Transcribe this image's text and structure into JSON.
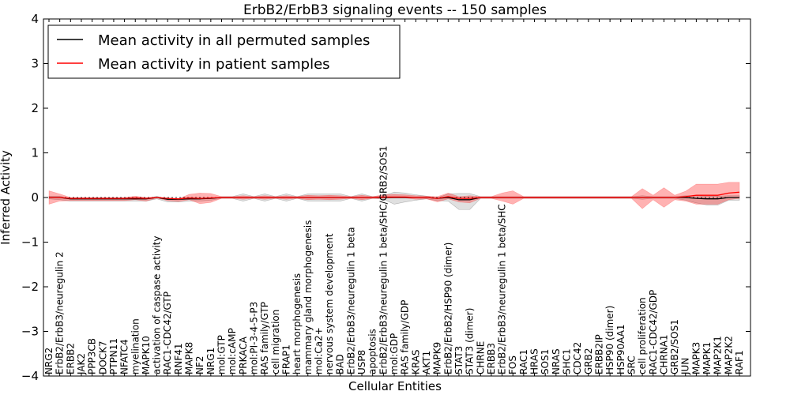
{
  "chart_data": {
    "type": "line",
    "title": "ErbB2/ErbB3 signaling events -- 150 samples",
    "xlabel": "Cellular Entities",
    "ylabel": "Inferred Activity",
    "ylim": [
      -4,
      4
    ],
    "yticks": [
      "4",
      "3",
      "2",
      "1",
      "0",
      "−1",
      "−2",
      "−3",
      "−4"
    ],
    "ytick_values": [
      4,
      3,
      2,
      1,
      0,
      -1,
      -2,
      -3,
      -4
    ],
    "legend": {
      "placement": "top-left",
      "entries": [
        {
          "label": "Mean activity in all permuted samples",
          "color": "#000000"
        },
        {
          "label": "Mean activity in patient samples",
          "color": "#ff0000"
        }
      ]
    },
    "categories": [
      "NRG2",
      "ErbB2/ErbB3/neuregulin 2",
      "ERBB2",
      "JAK2",
      "PPP3CB",
      "DOCK7",
      "PTPN11",
      "NFATC4",
      "myelination",
      "MAPK10",
      "activation of caspase activity",
      "RAC1-CDC42/GTP",
      "RNF41",
      "MAPK8",
      "NF2",
      "NRG1",
      "mol:GTP",
      "mol:cAMP",
      "PRKACA",
      "mol:PI-3-4-5-P3",
      "RAS family/GTP",
      "cell migration",
      "FRAP1",
      "heart morphogenesis",
      "mammary gland morphogenesis",
      "mol:Ca2+",
      "nervous system development",
      "BAD",
      "ErbB2/ErbB3/neuregulin 1 beta",
      "USP8",
      "apoptosis",
      "ErbB2/ErbB3/neuregulin 1 beta/SHC/GRB2/SOS1",
      "mol:GDP",
      "RAS family/GDP",
      "KRAS",
      "AKT1",
      "MAPK9",
      "ErbB2/ErbB2/HSP90 (dimer)",
      "STAT3",
      "STAT3 (dimer)",
      "CHRNE",
      "ERBB3",
      "ErbB2/ErbB3/neuregulin 1 beta/SHC",
      "FOS",
      "RAC1",
      "HRAS",
      "SOS1",
      "NRAS",
      "SHC1",
      "CDC42",
      "GRB2",
      "ERBB2IP",
      "HSP90 (dimer)",
      "HSP90AA1",
      "SRC",
      "cell proliferation",
      "RAC1-CDC42/GDP",
      "CHRNA1",
      "GRB2/SOS1",
      "JUN",
      "MAPK3",
      "MAPK1",
      "MAP2K1",
      "MAP2K2",
      "RAF1"
    ],
    "series": [
      {
        "name": "Mean activity in all permuted samples",
        "color": "#000000",
        "values": [
          0.0,
          0.0,
          -0.03,
          -0.03,
          -0.03,
          -0.03,
          -0.03,
          -0.03,
          -0.03,
          -0.03,
          0.0,
          -0.04,
          -0.04,
          -0.03,
          -0.03,
          -0.02,
          0.0,
          0.0,
          0.0,
          0.0,
          0.0,
          0.0,
          0.0,
          0.0,
          0.0,
          0.0,
          0.0,
          0.0,
          0.0,
          0.0,
          0.0,
          0.0,
          0.0,
          0.0,
          0.0,
          0.0,
          -0.02,
          0.0,
          -0.05,
          -0.05,
          0.0,
          0.0,
          0.0,
          0.0,
          0.0,
          0.0,
          0.0,
          0.0,
          0.0,
          0.0,
          0.0,
          0.0,
          0.0,
          0.0,
          0.0,
          0.0,
          0.0,
          0.0,
          0.0,
          0.0,
          -0.02,
          -0.03,
          -0.03,
          0.0,
          0.0
        ],
        "band": {
          "lower": [
            -0.03,
            -0.05,
            -0.05,
            -0.05,
            -0.05,
            -0.05,
            -0.05,
            -0.05,
            -0.05,
            -0.05,
            -0.03,
            -0.06,
            -0.06,
            -0.05,
            -0.05,
            -0.04,
            -0.02,
            -0.02,
            -0.08,
            -0.02,
            -0.08,
            -0.02,
            -0.08,
            -0.02,
            -0.08,
            -0.08,
            -0.08,
            -0.08,
            -0.02,
            -0.08,
            -0.02,
            -0.04,
            -0.15,
            -0.1,
            -0.06,
            -0.03,
            -0.05,
            -0.08,
            -0.22,
            -0.22,
            -0.02,
            -0.02,
            -0.02,
            -0.02,
            -0.02,
            -0.02,
            -0.02,
            -0.02,
            -0.02,
            -0.02,
            -0.02,
            -0.02,
            -0.02,
            -0.02,
            -0.02,
            -0.04,
            -0.02,
            -0.02,
            -0.02,
            -0.06,
            -0.1,
            -0.14,
            -0.14,
            -0.06,
            -0.06
          ],
          "upper": [
            0.03,
            0.03,
            0.0,
            0.0,
            0.0,
            0.0,
            0.0,
            0.0,
            0.0,
            0.0,
            0.03,
            -0.01,
            -0.01,
            0.0,
            0.0,
            0.0,
            0.02,
            0.02,
            0.08,
            0.02,
            0.08,
            0.02,
            0.08,
            0.02,
            0.08,
            0.08,
            0.08,
            0.08,
            0.02,
            0.08,
            0.02,
            0.04,
            0.12,
            0.1,
            0.06,
            0.03,
            0.01,
            0.08,
            0.14,
            0.14,
            0.02,
            0.02,
            0.02,
            0.02,
            0.02,
            0.02,
            0.02,
            0.02,
            0.02,
            0.02,
            0.02,
            0.02,
            0.02,
            0.02,
            0.02,
            0.04,
            0.02,
            0.02,
            0.02,
            0.04,
            0.06,
            0.06,
            0.06,
            0.04,
            0.04
          ]
        }
      },
      {
        "name": "Mean activity in patient samples",
        "color": "#ff0000",
        "values": [
          0.0,
          0.0,
          -0.02,
          -0.02,
          -0.02,
          -0.02,
          -0.02,
          -0.02,
          -0.01,
          -0.02,
          0.0,
          -0.02,
          -0.03,
          -0.01,
          -0.02,
          -0.01,
          0.0,
          0.0,
          0.0,
          0.0,
          0.0,
          0.0,
          0.0,
          0.0,
          0.0,
          0.0,
          0.0,
          0.0,
          0.0,
          0.0,
          0.0,
          0.01,
          0.01,
          0.01,
          0.0,
          0.0,
          -0.02,
          0.02,
          -0.02,
          -0.02,
          0.0,
          0.0,
          0.0,
          0.0,
          0.0,
          0.0,
          0.0,
          0.0,
          0.0,
          0.0,
          0.0,
          0.0,
          0.0,
          0.0,
          0.0,
          0.0,
          0.0,
          0.0,
          0.0,
          0.02,
          0.05,
          0.05,
          0.05,
          0.1,
          0.12
        ],
        "band": {
          "lower": [
            -0.15,
            -0.08,
            -0.05,
            -0.05,
            -0.05,
            -0.05,
            -0.05,
            -0.05,
            -0.04,
            -0.06,
            -0.01,
            -0.05,
            -0.06,
            -0.04,
            -0.12,
            -0.1,
            -0.02,
            -0.02,
            -0.04,
            -0.02,
            -0.04,
            -0.02,
            -0.04,
            -0.02,
            -0.05,
            -0.04,
            -0.05,
            -0.04,
            -0.02,
            -0.05,
            -0.02,
            -0.03,
            -0.02,
            -0.02,
            -0.04,
            -0.03,
            -0.08,
            -0.05,
            -0.08,
            -0.1,
            -0.02,
            -0.02,
            -0.08,
            -0.15,
            -0.02,
            -0.02,
            -0.02,
            -0.02,
            -0.02,
            -0.02,
            -0.02,
            -0.02,
            -0.02,
            -0.02,
            -0.02,
            -0.25,
            -0.05,
            -0.22,
            -0.05,
            -0.1,
            -0.2,
            -0.2,
            -0.2,
            -0.15,
            -0.14
          ],
          "upper": [
            0.15,
            0.08,
            0.02,
            0.02,
            0.02,
            0.02,
            0.02,
            0.02,
            0.04,
            0.02,
            0.01,
            0.01,
            0.0,
            0.08,
            0.12,
            0.1,
            0.02,
            0.02,
            0.04,
            0.02,
            0.04,
            0.02,
            0.04,
            0.02,
            0.05,
            0.04,
            0.05,
            0.04,
            0.02,
            0.05,
            0.02,
            0.05,
            0.06,
            0.05,
            0.04,
            0.03,
            0.04,
            0.08,
            0.04,
            0.06,
            0.02,
            0.02,
            0.1,
            0.15,
            0.02,
            0.02,
            0.02,
            0.02,
            0.02,
            0.02,
            0.02,
            0.02,
            0.02,
            0.02,
            0.02,
            0.2,
            0.05,
            0.22,
            0.05,
            0.12,
            0.25,
            0.25,
            0.25,
            0.24,
            0.22
          ]
        }
      }
    ]
  }
}
